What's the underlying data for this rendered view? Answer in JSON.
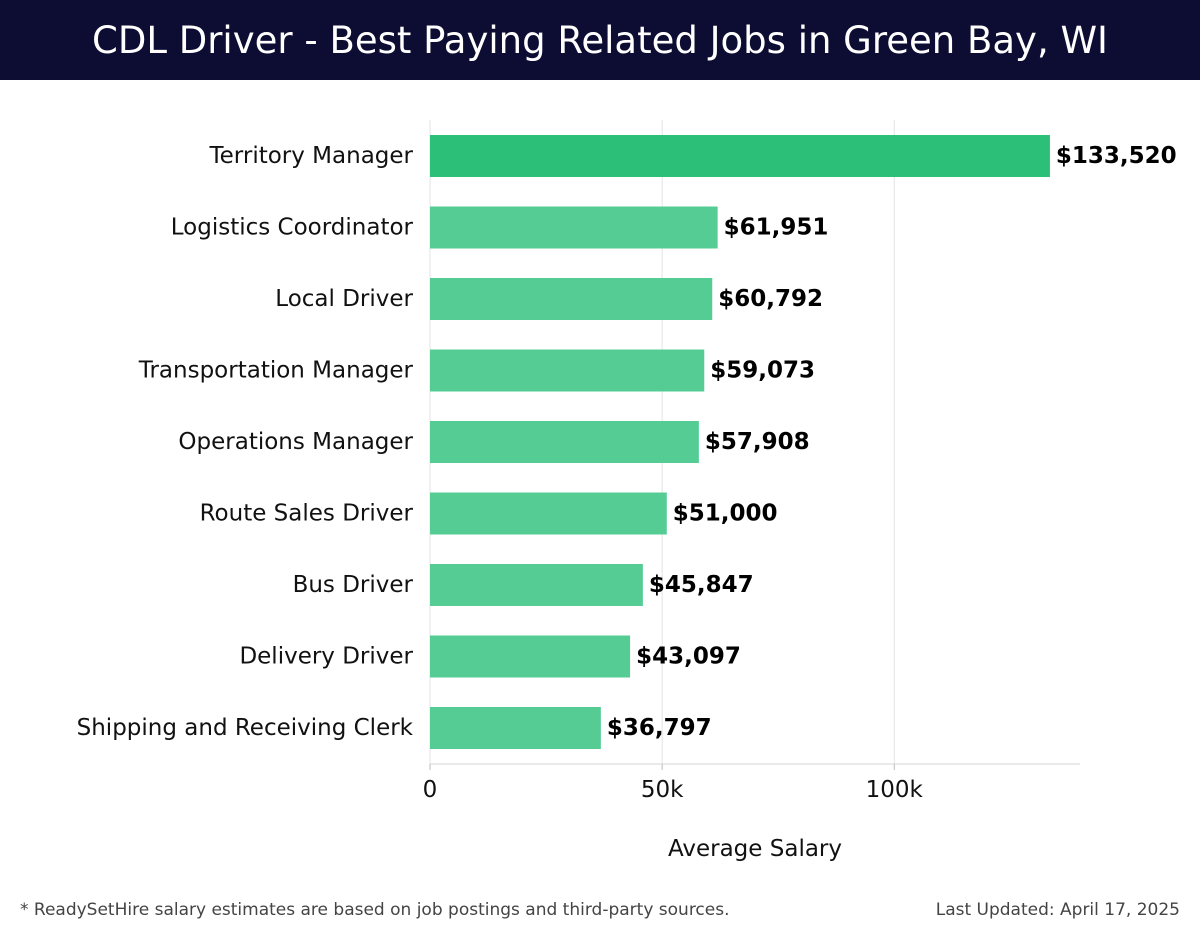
{
  "header": {
    "title": "CDL Driver - Best Paying Related Jobs in Green Bay, WI"
  },
  "chart_data": {
    "type": "bar",
    "orientation": "horizontal",
    "categories": [
      "Territory Manager",
      "Logistics Coordinator",
      "Local Driver",
      "Transportation Manager",
      "Operations Manager",
      "Route Sales Driver",
      "Bus Driver",
      "Delivery Driver",
      "Shipping and Receiving Clerk"
    ],
    "values": [
      133520,
      61951,
      60792,
      59073,
      57908,
      51000,
      45847,
      43097,
      36797
    ],
    "value_labels": [
      "$133,520",
      "$61,951",
      "$60,792",
      "$59,073",
      "$57,908",
      "$51,000",
      "$45,847",
      "$43,097",
      "$36,797"
    ],
    "xlabel": "Average Salary",
    "xlim": [
      0,
      140000
    ],
    "x_ticks": [
      {
        "value": 0,
        "label": "0"
      },
      {
        "value": 50000,
        "label": "50k"
      },
      {
        "value": 100000,
        "label": "100k"
      }
    ],
    "grid": true,
    "highlight_color": "#2bbf77",
    "bar_color": "#55cc94"
  },
  "footer": {
    "note": "* ReadySetHire salary estimates are based on job postings and third-party sources.",
    "updated": "Last Updated: April 17, 2025"
  }
}
